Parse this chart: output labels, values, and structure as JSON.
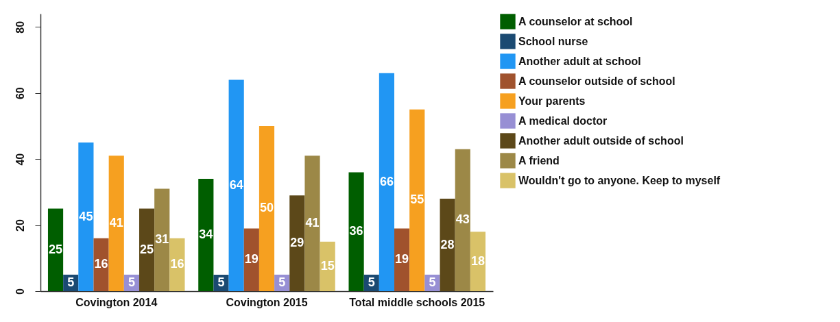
{
  "chart_data": {
    "type": "bar",
    "categories": [
      "Covington 2014",
      "Covington 2015",
      "Total middle schools 2015"
    ],
    "series": [
      {
        "name": "A counselor at school",
        "color": "#005e00",
        "values": [
          25,
          34,
          36
        ]
      },
      {
        "name": "School nurse",
        "color": "#1b4a72",
        "values": [
          5,
          5,
          5
        ]
      },
      {
        "name": "Another adult at school",
        "color": "#2196f3",
        "values": [
          45,
          64,
          66
        ]
      },
      {
        "name": "A counselor outside of school",
        "color": "#a0522d",
        "values": [
          16,
          19,
          19
        ]
      },
      {
        "name": "Your parents",
        "color": "#f6a020",
        "values": [
          41,
          50,
          55
        ]
      },
      {
        "name": "A medical doctor",
        "color": "#978fd4",
        "values": [
          5,
          5,
          5
        ]
      },
      {
        "name": "Another adult outside of school",
        "color": "#5c4819",
        "values": [
          25,
          29,
          28
        ]
      },
      {
        "name": "A friend",
        "color": "#9c8847",
        "values": [
          31,
          41,
          43
        ]
      },
      {
        "name": "Wouldn't go to anyone. Keep to myself",
        "color": "#d9c268",
        "values": [
          16,
          15,
          18
        ]
      }
    ],
    "ylim": [
      0,
      84
    ],
    "yticks": [
      0,
      20,
      40,
      60,
      80
    ],
    "grid": false,
    "legend": "right",
    "data_labels": true
  }
}
